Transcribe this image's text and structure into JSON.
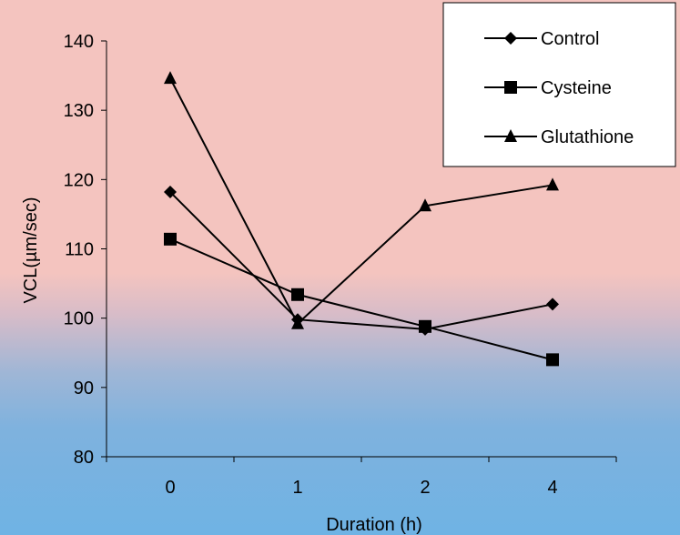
{
  "chart_data": {
    "type": "line",
    "categories": [
      "0",
      "1",
      "2",
      "4"
    ],
    "xlabel": "Duration (h)",
    "ylabel": "VCL(µm/sec)",
    "ylim": [
      80,
      140
    ],
    "yticks": [
      80,
      90,
      100,
      110,
      120,
      130,
      140
    ],
    "grid": false,
    "legend_position": "top-right",
    "series": [
      {
        "name": "Control",
        "marker": "diamond",
        "values": [
          118.2,
          99.8,
          98.4,
          102.0
        ]
      },
      {
        "name": "Cysteine",
        "marker": "square",
        "values": [
          111.4,
          103.4,
          98.8,
          94.0
        ]
      },
      {
        "name": "Glutathione",
        "marker": "triangle",
        "values": [
          134.6,
          99.2,
          116.2,
          119.2
        ]
      }
    ]
  }
}
